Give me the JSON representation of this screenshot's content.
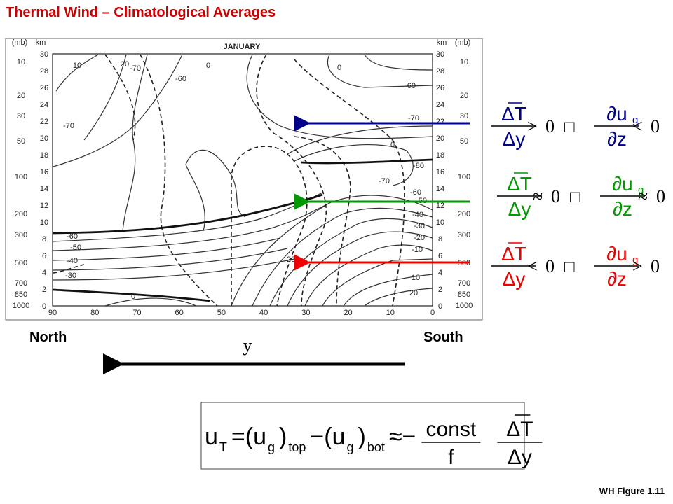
{
  "title": "Thermal Wind – Climatological Averages",
  "figure": {
    "month": "JANUARY",
    "pressure_unit": "(mb)",
    "height_unit": "km",
    "heights": [
      0,
      2,
      4,
      6,
      8,
      10,
      12,
      14,
      16,
      18,
      20,
      22,
      24,
      26,
      28,
      30
    ],
    "pressures": [
      10,
      20,
      30,
      50,
      100,
      200,
      300,
      500,
      700,
      850,
      1000
    ],
    "latitudes": [
      90,
      80,
      70,
      60,
      50,
      40,
      30,
      20,
      10,
      0
    ],
    "contour_labels": [
      "10",
      "20",
      "-70",
      "-60",
      "0",
      "0",
      "-60",
      "-70",
      "-70",
      "-80",
      "-70",
      "-60",
      "-50",
      "-40",
      "-30",
      "-20",
      "-60",
      "-50",
      "-40",
      "-30",
      "0",
      "20",
      "10",
      "20",
      "-10",
      "0"
    ]
  },
  "labels": {
    "north": "North",
    "south": "South",
    "axis": "y"
  },
  "relations": [
    {
      "num": "ΔT",
      "den": "Δy",
      "rel": ">",
      "rhs": "0",
      "implies": "□",
      "dnum": "∂u",
      "dsub": "g",
      "dden": "∂z",
      "drel": "<",
      "drhs": "0"
    },
    {
      "num": "ΔT",
      "den": "Δy",
      "rel": "≈",
      "rhs": "0",
      "implies": "□",
      "dnum": "∂u",
      "dsub": "g",
      "dden": "∂z",
      "drel": "≈",
      "drhs": "0"
    },
    {
      "num": "ΔT",
      "den": "Δy",
      "rel": "<",
      "rhs": "0",
      "implies": "□",
      "dnum": "∂u",
      "dsub": "g",
      "dden": "∂z",
      "drel": ">",
      "drhs": "0"
    }
  ],
  "formula": {
    "parts": [
      {
        "text": "u",
        "sub": "T"
      },
      {
        "text": "=(u",
        "sub": "g"
      },
      {
        "text": ")",
        "sub": "top"
      },
      {
        "text": "−(u",
        "sub": "g"
      },
      {
        "text": ")",
        "sub": "bot"
      },
      {
        "text": "≈−"
      }
    ],
    "frac1": {
      "num": "const",
      "den": "f"
    },
    "frac2": {
      "num": "ΔT",
      "den": "Δy"
    }
  },
  "caption": "WH Figure 1.11"
}
